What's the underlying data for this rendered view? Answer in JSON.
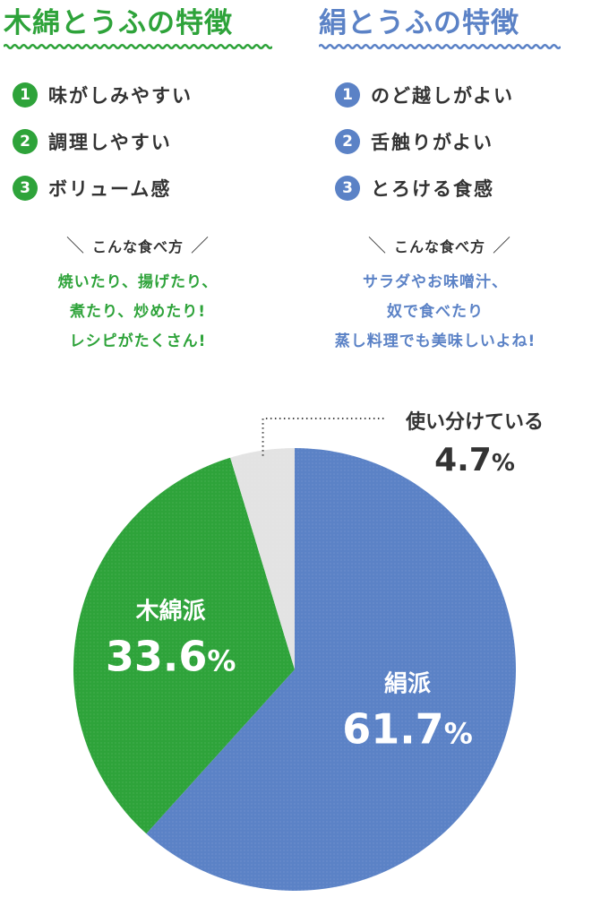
{
  "colors": {
    "momen": "#2ea33a",
    "kinu": "#5b82c6",
    "both": "#e3e3e3",
    "text": "#333333"
  },
  "momen": {
    "title": "木綿とうふの特徴",
    "features": [
      {
        "num": "1",
        "text": "味がしみやすい"
      },
      {
        "num": "2",
        "text": "調理しやすい"
      },
      {
        "num": "3",
        "text": "ボリューム感"
      }
    ],
    "eat_heading": "こんな食べ方",
    "eat_lines": [
      "焼いたり、揚げたり、",
      "煮たり、炒めたり!",
      "レシピがたくさん!"
    ]
  },
  "kinu": {
    "title": "絹とうふの特徴",
    "features": [
      {
        "num": "1",
        "text": "のど越しがよい"
      },
      {
        "num": "2",
        "text": "舌触りがよい"
      },
      {
        "num": "3",
        "text": "とろける食感"
      }
    ],
    "eat_heading": "こんな食べ方",
    "eat_lines": [
      "サラダやお味噌汁、",
      "奴で食べたり",
      "蒸し料理でも美味しいよね!"
    ]
  },
  "chart_data": {
    "type": "pie",
    "start": "12 o'clock",
    "direction": "clockwise",
    "slices": [
      {
        "label": "絹派",
        "value": 61.7,
        "display": "61.7",
        "unit": "%",
        "color": "#5b82c6"
      },
      {
        "label": "木綿派",
        "value": 33.6,
        "display": "33.6",
        "unit": "%",
        "color": "#2ea33a"
      },
      {
        "label": "使い分けている",
        "value": 4.7,
        "display": "4.7",
        "unit": "%",
        "color": "#e3e3e3"
      }
    ]
  }
}
